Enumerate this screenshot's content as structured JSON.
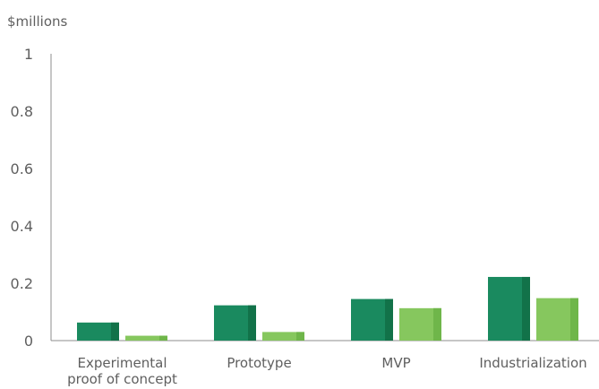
{
  "chart_data": {
    "type": "bar",
    "ylabel": "$millions",
    "ylim": [
      0,
      1
    ],
    "yticks": [
      "0",
      "0.2",
      "0.4",
      "0.6",
      "0.8",
      "1"
    ],
    "categories": [
      [
        "Experimental",
        "proof of concept"
      ],
      [
        "Prototype"
      ],
      [
        "MVP"
      ],
      [
        "Industrialization"
      ]
    ],
    "series": [
      {
        "color": "#1a8a5f",
        "shade": "#127249",
        "values": [
          0.063,
          0.123,
          0.145,
          0.222
        ]
      },
      {
        "color": "#86c75e",
        "shade": "#6fb64a",
        "values": [
          0.017,
          0.03,
          0.113,
          0.148
        ]
      }
    ],
    "grid": false,
    "legend": "none"
  }
}
